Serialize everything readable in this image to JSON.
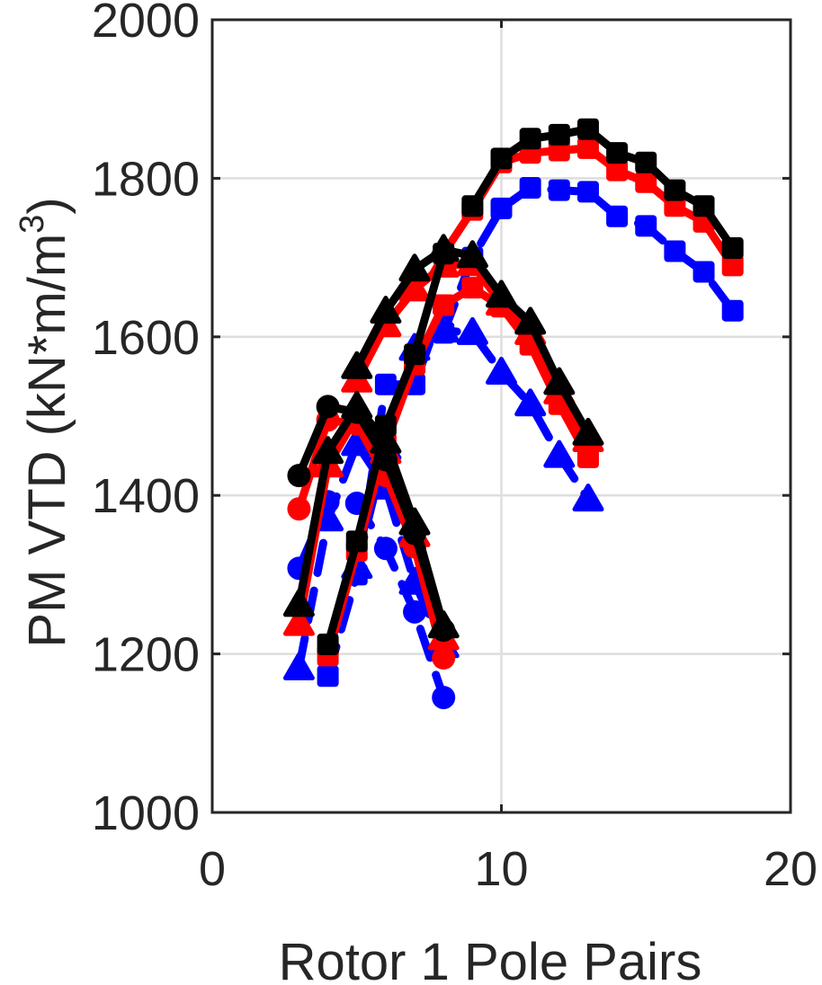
{
  "chart_data": {
    "type": "line",
    "title": "",
    "xlabel": "Rotor 1 Pole Pairs",
    "ylabel_main": "PM VTD (kN*m/m",
    "ylabel_sup": "3",
    "ylabel_close": ")",
    "xlim": [
      0,
      20
    ],
    "ylim": [
      1000,
      2000
    ],
    "xticks": [
      0,
      10,
      20
    ],
    "yticks": [
      1000,
      1200,
      1400,
      1600,
      1800,
      2000
    ],
    "xtick_labels": [
      "0",
      "10",
      "20"
    ],
    "ytick_labels": [
      "1000",
      "1200",
      "1400",
      "1600",
      "1800",
      "2000"
    ],
    "grid": true,
    "legend": "none",
    "series": [
      {
        "color": "#0000ff",
        "marker": "circle",
        "dashed": true,
        "x": [
          3,
          4,
          5,
          6,
          7,
          8
        ],
        "y": [
          1308,
          1392,
          1390,
          1333,
          1253,
          1145
        ]
      },
      {
        "color": "#0000ff",
        "marker": "triangle",
        "dashed": true,
        "x": [
          3,
          4,
          5,
          6,
          7,
          8
        ],
        "y": [
          1182,
          1370,
          1465,
          1410,
          1290,
          1210
        ]
      },
      {
        "color": "#0000ff",
        "marker": "square",
        "dashed": true,
        "x": [
          4,
          5,
          6,
          7,
          8
        ],
        "y": [
          1172,
          1300,
          1540,
          1540,
          1640
        ]
      },
      {
        "color": "#0000ff",
        "marker": "triangle",
        "dashed": true,
        "x": [
          5,
          6,
          7,
          8,
          9,
          10,
          11,
          12,
          13
        ],
        "y": [
          1310,
          1460,
          1585,
          1608,
          1605,
          1555,
          1515,
          1450,
          1395
        ]
      },
      {
        "color": "#0000ff",
        "marker": "square",
        "dashed": true,
        "x": [
          8,
          9,
          10,
          11,
          12,
          13,
          14,
          15,
          16,
          17,
          18
        ],
        "y": [
          1605,
          1700,
          1762,
          1788,
          1785,
          1783,
          1752,
          1740,
          1708,
          1682,
          1633
        ]
      },
      {
        "color": "#ff0000",
        "marker": "circle",
        "dashed": false,
        "x": [
          3,
          4,
          5,
          6,
          7,
          8
        ],
        "y": [
          1383,
          1495,
          1490,
          1425,
          1335,
          1195
        ]
      },
      {
        "color": "#ff0000",
        "marker": "triangle",
        "dashed": false,
        "x": [
          3,
          4,
          5,
          6,
          7,
          8
        ],
        "y": [
          1238,
          1438,
          1500,
          1455,
          1350,
          1220
        ]
      },
      {
        "color": "#ff0000",
        "marker": "square",
        "dashed": false,
        "x": [
          4,
          5,
          6,
          7,
          8,
          9,
          10,
          11,
          12,
          13
        ],
        "y": [
          1198,
          1330,
          1465,
          1565,
          1640,
          1662,
          1638,
          1590,
          1515,
          1448
        ]
      },
      {
        "color": "#ff0000",
        "marker": "triangle",
        "dashed": false,
        "x": [
          5,
          6,
          7,
          8,
          9,
          10,
          11,
          12,
          13
        ],
        "y": [
          1545,
          1615,
          1660,
          1690,
          1692,
          1642,
          1605,
          1530,
          1470
        ]
      },
      {
        "color": "#ff0000",
        "marker": "square",
        "dashed": false,
        "x": [
          8,
          9,
          10,
          11,
          12,
          13,
          14,
          15,
          16,
          17,
          18
        ],
        "y": [
          1705,
          1760,
          1820,
          1832,
          1835,
          1838,
          1810,
          1795,
          1765,
          1745,
          1690
        ]
      },
      {
        "color": "#000000",
        "marker": "circle",
        "dashed": false,
        "x": [
          3,
          4,
          5,
          6,
          7,
          8
        ],
        "y": [
          1425,
          1512,
          1505,
          1445,
          1352,
          1230
        ]
      },
      {
        "color": "#000000",
        "marker": "triangle",
        "dashed": false,
        "x": [
          3,
          4,
          5,
          6,
          7,
          8
        ],
        "y": [
          1262,
          1455,
          1512,
          1468,
          1365,
          1235
        ]
      },
      {
        "color": "#000000",
        "marker": "square",
        "dashed": false,
        "x": [
          4,
          5,
          6,
          7,
          8
        ],
        "y": [
          1212,
          1342,
          1488,
          1578,
          1705
        ]
      },
      {
        "color": "#000000",
        "marker": "triangle",
        "dashed": false,
        "x": [
          5,
          6,
          7,
          8,
          9,
          10,
          11,
          12,
          13
        ],
        "y": [
          1562,
          1632,
          1685,
          1710,
          1702,
          1652,
          1618,
          1542,
          1478
        ]
      },
      {
        "color": "#000000",
        "marker": "square",
        "dashed": false,
        "x": [
          9,
          10,
          11,
          12,
          13,
          14,
          15,
          16,
          17,
          18
        ],
        "y": [
          1765,
          1825,
          1850,
          1855,
          1862,
          1832,
          1820,
          1785,
          1765,
          1712
        ]
      }
    ]
  }
}
